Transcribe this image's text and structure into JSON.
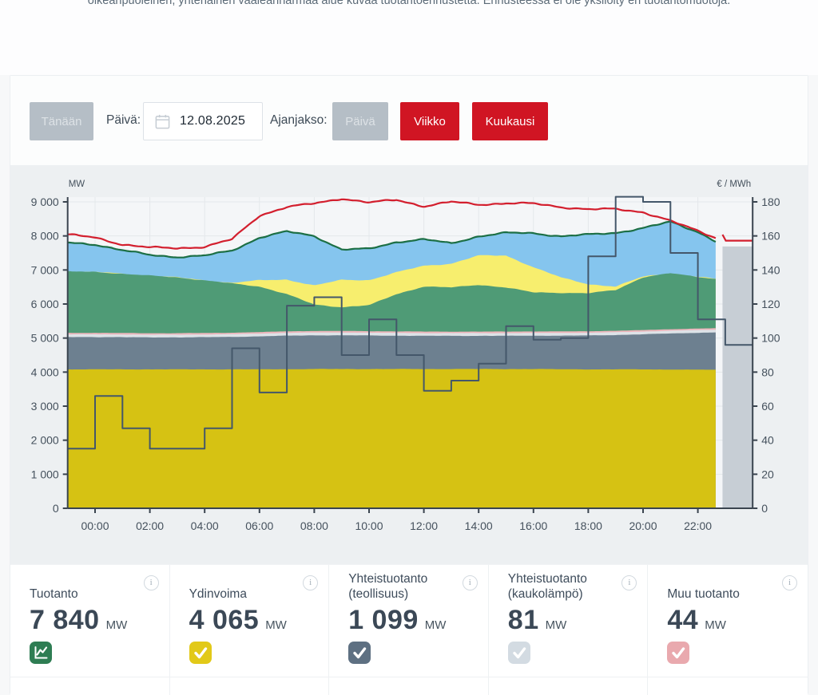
{
  "page": {
    "top_text": "oikeanpuoleinen, yhtenäinen vaaleanharmaa alue kuvaa tuotantoennustetta. Ennusteessa ei ole yksilöity eri tuotantomuotoja."
  },
  "controls": {
    "today_button": "Tänään",
    "date_label": "Päivä:",
    "date_value": "12.08.2025",
    "period_label": "Ajanjakso:",
    "period_options": {
      "day": "Päivä",
      "week": "Viikko",
      "month": "Kuukausi"
    },
    "period_selected": "Päivä"
  },
  "chart_data": {
    "type": "area",
    "description": "stacked area of production by type + production/consumption lines + stepped spot price line + flat gray forecast area at right",
    "x_hours": [
      -1,
      0,
      1,
      2,
      3,
      4,
      5,
      6,
      7,
      8,
      9,
      10,
      11,
      12,
      13,
      14,
      15,
      16,
      17,
      18,
      19,
      20,
      21,
      22,
      22.65
    ],
    "series": [
      {
        "id": "nuclear-area",
        "color": "#d6c213",
        "values": [
          4080,
          4080,
          4080,
          4080,
          4080,
          4080,
          4080,
          4080,
          4085,
          4090,
          4090,
          4090,
          4090,
          4090,
          4090,
          4090,
          4090,
          4090,
          4085,
          4080,
          4080,
          4080,
          4075,
          4070,
          4065
        ]
      },
      {
        "id": "chp-industry-area",
        "color": "#6d8090",
        "values": [
          950,
          950,
          945,
          940,
          940,
          945,
          955,
          970,
          985,
          990,
          990,
          985,
          980,
          975,
          975,
          975,
          975,
          980,
          985,
          995,
          1010,
          1030,
          1060,
          1085,
          1099
        ]
      },
      {
        "id": "chp-district-area",
        "color": "#dde3e8",
        "values": [
          78,
          78,
          78,
          78,
          78,
          78,
          78,
          80,
          82,
          82,
          82,
          82,
          80,
          80,
          80,
          80,
          80,
          80,
          80,
          80,
          80,
          80,
          81,
          81,
          81
        ]
      },
      {
        "id": "other-production-area",
        "color": "#ecb5bb",
        "values": [
          45,
          45,
          45,
          45,
          45,
          45,
          45,
          45,
          46,
          46,
          46,
          46,
          45,
          45,
          45,
          45,
          45,
          45,
          45,
          45,
          45,
          44,
          44,
          44,
          44
        ]
      },
      {
        "id": "hydro-green-area",
        "color": "#4f9b76",
        "values": [
          1800,
          1790,
          1740,
          1690,
          1640,
          1545,
          1445,
          1340,
          1090,
          775,
          700,
          760,
          1095,
          1325,
          1295,
          1375,
          1295,
          1145,
          1135,
          1115,
          1195,
          1555,
          1645,
          1515,
          1450
        ]
      },
      {
        "id": "solar-yellow-area",
        "color": "#f7ee6e",
        "values": [
          0,
          0,
          0,
          0,
          0,
          0,
          20,
          180,
          430,
          560,
          800,
          740,
          640,
          610,
          700,
          860,
          940,
          740,
          450,
          270,
          100,
          20,
          0,
          0,
          0
        ]
      },
      {
        "id": "wind-blue-area",
        "color": "#85c5ee",
        "values": [
          847,
          807,
          692,
          607,
          597,
          727,
          947,
          1255,
          1412,
          1457,
          892,
          917,
          890,
          775,
          595,
          565,
          665,
          1000,
          1210,
          1455,
          1580,
          1421,
          1510,
          1325,
          1101
        ]
      }
    ],
    "production_total_line": {
      "color": "#1c6f45",
      "values": [
        7800,
        7750,
        7580,
        7440,
        7380,
        7420,
        7570,
        7950,
        8130,
        8000,
        7600,
        7620,
        7820,
        7900,
        7780,
        7990,
        8090,
        8080,
        7990,
        8040,
        8090,
        8230,
        8415,
        8120,
        7840
      ]
    },
    "consumption_line": {
      "color": "#d31f2e",
      "values": [
        8040,
        7950,
        7750,
        7660,
        7640,
        7680,
        7900,
        8600,
        8850,
        8950,
        9100,
        8980,
        9060,
        8870,
        9000,
        8920,
        8960,
        8950,
        8850,
        8780,
        8790,
        8700,
        8440,
        8150,
        7950
      ]
    },
    "price_step_line": {
      "color": "#44576a",
      "step_hours": [
        -1,
        0,
        1,
        2,
        3,
        4,
        5,
        6,
        7,
        8,
        9,
        10,
        11,
        12,
        13,
        14,
        15,
        16,
        17,
        18,
        19,
        20,
        21,
        22,
        23
      ],
      "values": [
        35,
        66,
        47,
        35,
        35,
        47,
        94,
        68,
        119,
        124,
        90,
        111,
        90,
        69,
        75,
        85,
        107,
        99,
        100,
        148,
        183,
        180,
        150,
        111,
        96
      ],
      "end_hour": 24
    },
    "forecast": {
      "area_color": "#c7ced5",
      "start_hour": 22.9,
      "end_hour": 24,
      "production_forecast_mw": 7690,
      "consumption_forecast_mw": 7860,
      "consumption_spike_mw": 8040
    },
    "axes": {
      "left_title": "MW",
      "right_title": "€ / MWh",
      "left_range": [
        0,
        9000
      ],
      "right_range": [
        0,
        180
      ],
      "left_tick_values": [
        0,
        1000,
        2000,
        3000,
        4000,
        5000,
        6000,
        7000,
        8000,
        9000
      ],
      "left_tick_labels": [
        "0",
        "1 000",
        "2 000",
        "3 000",
        "4 000",
        "5 000",
        "6 000",
        "7 000",
        "8 000",
        "9 000"
      ],
      "right_tick_values": [
        0,
        20,
        40,
        60,
        80,
        100,
        120,
        140,
        160,
        180
      ],
      "right_tick_labels": [
        "0",
        "20",
        "40",
        "60",
        "80",
        "100",
        "120",
        "140",
        "160",
        "180"
      ],
      "x_tick_hours": [
        0,
        2,
        4,
        6,
        8,
        10,
        12,
        14,
        16,
        18,
        20,
        22
      ],
      "x_tick_labels": [
        "00:00",
        "02:00",
        "04:00",
        "06:00",
        "08:00",
        "10:00",
        "12:00",
        "14:00",
        "16:00",
        "18:00",
        "20:00",
        "22:00"
      ],
      "grid": true
    }
  },
  "cards": [
    {
      "label": "Tuotanto",
      "value": "7 840",
      "unit": "MW",
      "icon": "line-chart",
      "icon_color": "#2e7d53"
    },
    {
      "label": "Ydinvoima",
      "value": "4 065",
      "unit": "MW",
      "icon": "check",
      "icon_color": "#e2c918"
    },
    {
      "label": "Yhteistuotanto (teollisuus)",
      "value": "1 099",
      "unit": "MW",
      "icon": "check",
      "icon_color": "#5e7082"
    },
    {
      "label": "Yhteistuotanto (kaukolämpö)",
      "value": "81",
      "unit": "MW",
      "icon": "check",
      "icon_color": "#d3dbe2"
    },
    {
      "label": "Muu tuotanto",
      "value": "44",
      "unit": "MW",
      "icon": "check",
      "icon_color": "#e9a9ae"
    }
  ],
  "info_icon_glyph": "i"
}
